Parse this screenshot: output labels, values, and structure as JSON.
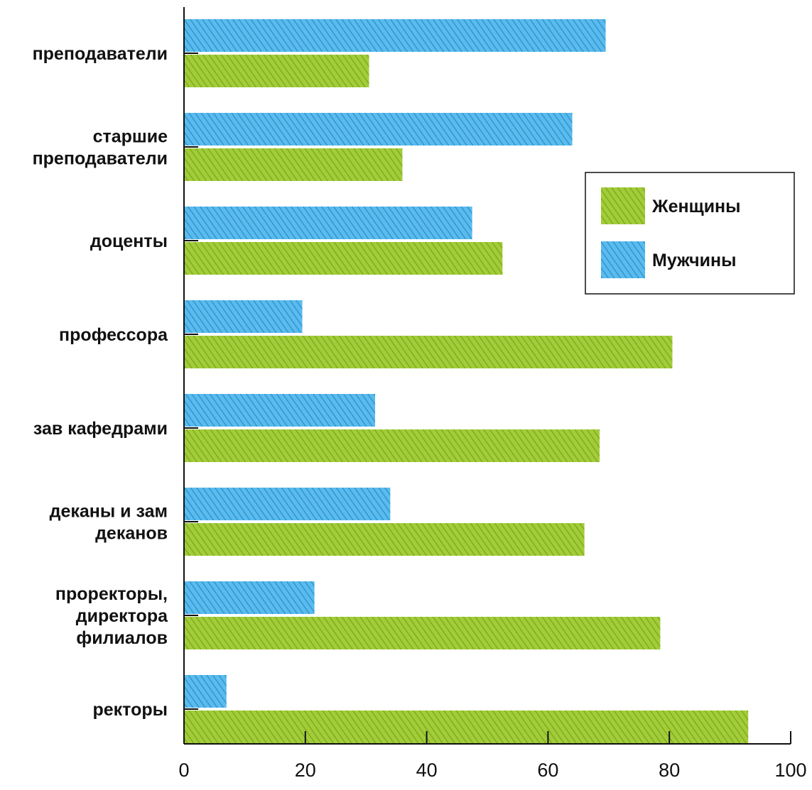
{
  "chart_data": {
    "type": "bar",
    "orientation": "horizontal",
    "categories": [
      "преподаватели",
      "старшие преподаватели",
      "доценты",
      "профессора",
      "зав кафедрами",
      "деканы и зам деканов",
      "проректоры, директора филиалов",
      "ректоры"
    ],
    "category_lines": [
      [
        "преподаватели"
      ],
      [
        "старшие",
        "преподаватели"
      ],
      [
        "доценты"
      ],
      [
        "профессора"
      ],
      [
        "зав кафедрами"
      ],
      [
        "деканы и зам",
        "деканов"
      ],
      [
        "проректоры,",
        "директора",
        "филиалов"
      ],
      [
        "ректоры"
      ]
    ],
    "series": [
      {
        "name": "Мужчины",
        "color": "#3aa8e0",
        "values": [
          69.5,
          64,
          47.5,
          19.5,
          31.5,
          34,
          21.5,
          7
        ]
      },
      {
        "name": "Женщины",
        "color": "#8cbb22",
        "values": [
          30.5,
          36,
          52.5,
          80.5,
          68.5,
          66,
          78.5,
          93
        ]
      }
    ],
    "xlim": [
      0,
      100
    ],
    "x_ticks": [
      0,
      20,
      40,
      60,
      80,
      100
    ],
    "title": "",
    "xlabel": "",
    "ylabel": "",
    "grid": false,
    "legend_position": "right",
    "legend_order": [
      "Женщины",
      "Мужчины"
    ],
    "fill_style": "diagonal-hatch"
  }
}
